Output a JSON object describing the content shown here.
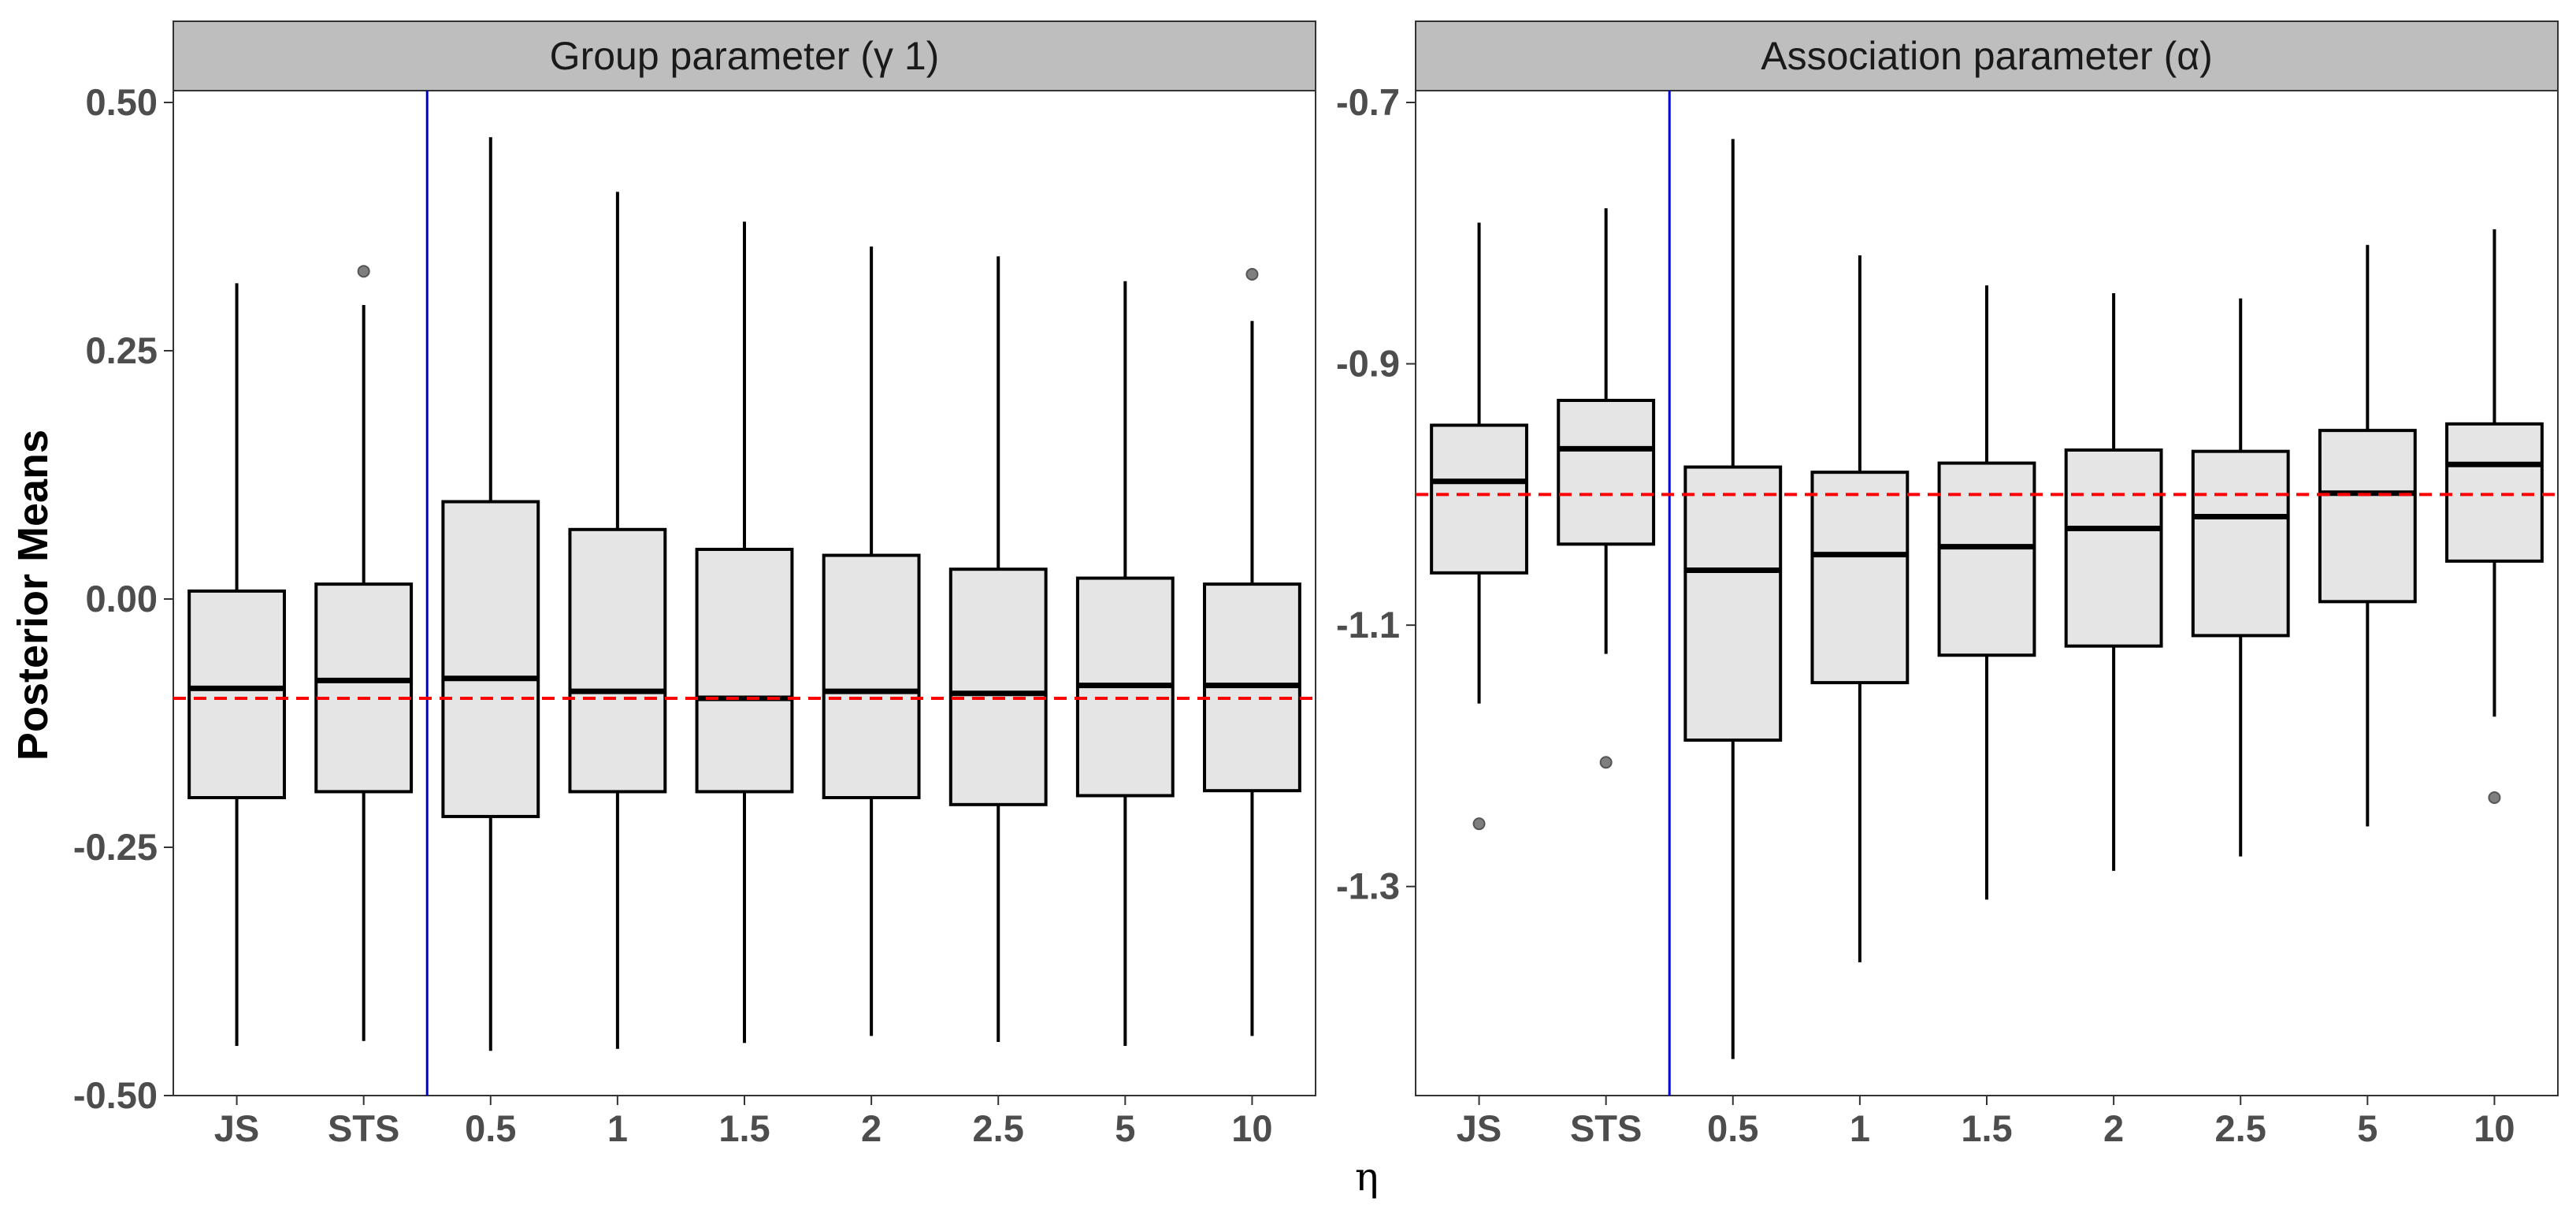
{
  "chart_data": [
    {
      "type": "box",
      "title": "Group parameter (γ 1)",
      "xlabel": "η",
      "ylabel": "Posterior Means",
      "ylim": [
        -0.5,
        0.5
      ],
      "yticks": [
        0.5,
        0.25,
        0.0,
        -0.25,
        -0.5
      ],
      "ytick_labels": [
        "0.50",
        "0.25",
        "0.00",
        "-0.25",
        "-0.50"
      ],
      "categories": [
        "JS",
        "STS",
        "0.5",
        "1",
        "1.5",
        "2",
        "2.5",
        "5",
        "10"
      ],
      "reference_line": -0.1,
      "divider_after_index": 1,
      "boxes": [
        {
          "min": -0.45,
          "q1": -0.2,
          "median": -0.09,
          "q3": 0.008,
          "max": 0.318,
          "outliers": []
        },
        {
          "min": -0.445,
          "q1": -0.194,
          "median": -0.082,
          "q3": 0.015,
          "max": 0.296,
          "outliers": [
            0.33
          ]
        },
        {
          "min": -0.455,
          "q1": -0.219,
          "median": -0.08,
          "q3": 0.098,
          "max": 0.465,
          "outliers": []
        },
        {
          "min": -0.453,
          "q1": -0.194,
          "median": -0.093,
          "q3": 0.07,
          "max": 0.41,
          "outliers": []
        },
        {
          "min": -0.447,
          "q1": -0.194,
          "median": -0.1,
          "q3": 0.05,
          "max": 0.38,
          "outliers": []
        },
        {
          "min": -0.44,
          "q1": -0.2,
          "median": -0.093,
          "q3": 0.044,
          "max": 0.355,
          "outliers": []
        },
        {
          "min": -0.446,
          "q1": -0.207,
          "median": -0.095,
          "q3": 0.03,
          "max": 0.345,
          "outliers": []
        },
        {
          "min": -0.45,
          "q1": -0.198,
          "median": -0.087,
          "q3": 0.021,
          "max": 0.32,
          "outliers": []
        },
        {
          "min": -0.44,
          "q1": -0.193,
          "median": -0.087,
          "q3": 0.015,
          "max": 0.28,
          "outliers": [
            0.327
          ]
        }
      ]
    },
    {
      "type": "box",
      "title": "Association parameter (α)",
      "xlabel": "η",
      "ylim": [
        -1.46,
        -0.7
      ],
      "yticks": [
        -0.7,
        -0.9,
        -1.1,
        -1.3
      ],
      "ytick_labels": [
        "-0.7",
        "-0.9",
        "-1.1",
        "-1.3"
      ],
      "categories": [
        "JS",
        "STS",
        "0.5",
        "1",
        "1.5",
        "2",
        "2.5",
        "5",
        "10"
      ],
      "reference_line": -1.0,
      "divider_after_index": 1,
      "boxes": [
        {
          "min": -1.16,
          "q1": -1.06,
          "median": -0.99,
          "q3": -0.947,
          "max": -0.792,
          "outliers": [
            -1.252
          ]
        },
        {
          "min": -1.122,
          "q1": -1.038,
          "median": -0.965,
          "q3": -0.928,
          "max": -0.781,
          "outliers": [
            -1.205
          ]
        },
        {
          "min": -1.432,
          "q1": -1.188,
          "median": -1.058,
          "q3": -0.979,
          "max": -0.728,
          "outliers": []
        },
        {
          "min": -1.358,
          "q1": -1.144,
          "median": -1.046,
          "q3": -0.983,
          "max": -0.817,
          "outliers": []
        },
        {
          "min": -1.31,
          "q1": -1.123,
          "median": -1.04,
          "q3": -0.976,
          "max": -0.84,
          "outliers": []
        },
        {
          "min": -1.288,
          "q1": -1.116,
          "median": -1.026,
          "q3": -0.966,
          "max": -0.846,
          "outliers": []
        },
        {
          "min": -1.277,
          "q1": -1.108,
          "median": -1.017,
          "q3": -0.967,
          "max": -0.85,
          "outliers": []
        },
        {
          "min": -1.254,
          "q1": -1.082,
          "median": -0.999,
          "q3": -0.951,
          "max": -0.809,
          "outliers": []
        },
        {
          "min": -1.17,
          "q1": -1.051,
          "median": -0.977,
          "q3": -0.946,
          "max": -0.797,
          "outliers": [
            -1.232
          ]
        }
      ]
    }
  ],
  "colors": {
    "box_fill": "#e5e5e5",
    "strip_fill": "#bebebe",
    "outlier": "#7f7f7f",
    "reference_line": "#ff0000",
    "divider": "#0000cc"
  }
}
